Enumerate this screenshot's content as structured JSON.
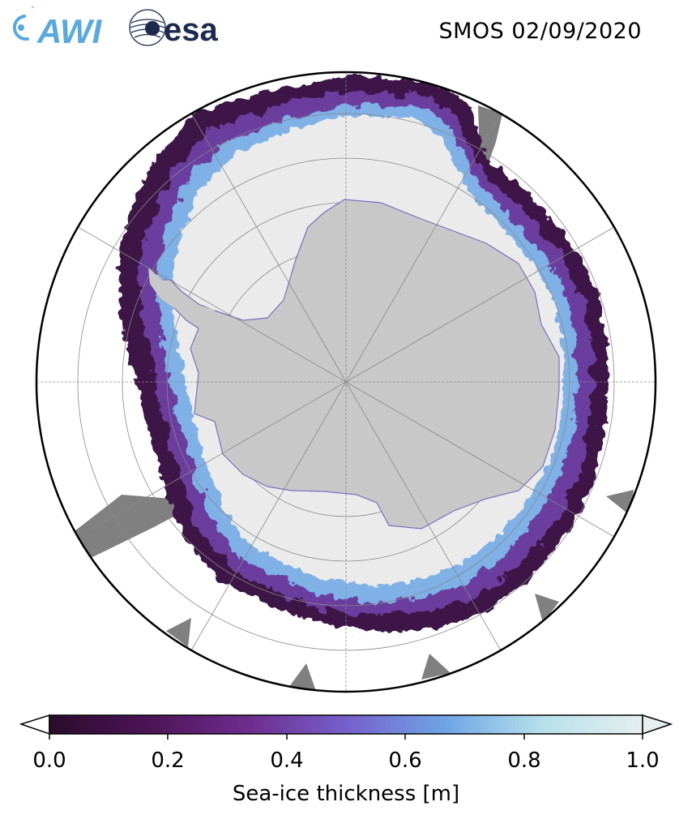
{
  "header": {
    "title": "SMOS 02/09/2020",
    "logo_awi": "AWI",
    "logo_esa": "esa"
  },
  "map": {
    "projection": "south-polar-stereographic",
    "colors": {
      "land": "#c8c8c8",
      "thick_ice": "#ebebeb",
      "no_data": "#808080",
      "ocean": "#ffffff",
      "gridline": "#888888"
    }
  },
  "colorbar": {
    "label": "Sea-ice thickness [m]",
    "ticks": [
      "0.0",
      "0.2",
      "0.4",
      "0.6",
      "0.8",
      "1.0"
    ],
    "range": [
      0.0,
      1.0
    ],
    "extend": "both",
    "colormap": [
      "#2a0c2c",
      "#4d1458",
      "#6e2b8c",
      "#7660cc",
      "#6fa5e6",
      "#b6e0ec",
      "#e5efee"
    ]
  }
}
